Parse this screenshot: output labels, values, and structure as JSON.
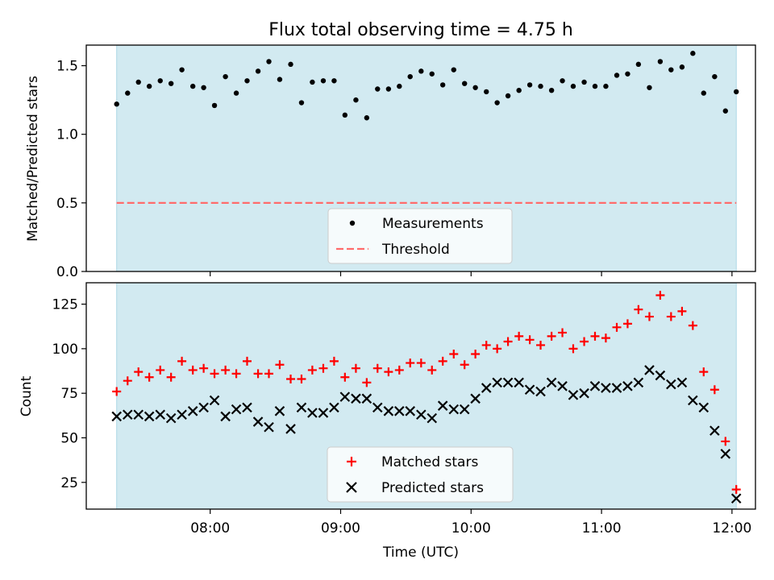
{
  "figure_title": "Flux total observing time = 4.75 h",
  "x_tick_labels": [
    "08:00",
    "09:00",
    "10:00",
    "11:00",
    "12:00"
  ],
  "chart_data": [
    {
      "type": "scatter",
      "title": "Flux total observing time = 4.75 h",
      "ylabel": "Matched/Predicted stars",
      "xlabel": "",
      "xlim": [
        7.05,
        12.18
      ],
      "ylim": [
        0,
        1.65
      ],
      "yticks": [
        0,
        0.5,
        1.0,
        1.5
      ],
      "ytick_labels": [
        "0.0",
        "0.5",
        "1.0",
        "1.5"
      ],
      "shaded_span": [
        7.283,
        12.033
      ],
      "shade_color": "#add8e6",
      "legend": {
        "location": "bottom-center",
        "entries": [
          "Measurements",
          "Threshold"
        ]
      },
      "threshold": {
        "name": "Threshold",
        "value": 0.5,
        "color": "#ff6b6b",
        "style": "dashed"
      },
      "series": [
        {
          "name": "Measurements",
          "marker": "dot",
          "color": "#000000",
          "x": [
            7.283,
            7.367,
            7.45,
            7.533,
            7.617,
            7.7,
            7.783,
            7.867,
            7.95,
            8.033,
            8.117,
            8.2,
            8.283,
            8.367,
            8.45,
            8.533,
            8.617,
            8.7,
            8.783,
            8.867,
            8.95,
            9.033,
            9.117,
            9.2,
            9.283,
            9.367,
            9.45,
            9.533,
            9.617,
            9.7,
            9.783,
            9.867,
            9.95,
            10.033,
            10.117,
            10.2,
            10.283,
            10.367,
            10.45,
            10.533,
            10.617,
            10.7,
            10.783,
            10.867,
            10.95,
            11.033,
            11.117,
            11.2,
            11.283,
            11.367,
            11.45,
            11.533,
            11.617,
            11.7,
            11.783,
            11.867,
            11.95,
            12.033
          ],
          "y": [
            1.22,
            1.3,
            1.38,
            1.35,
            1.39,
            1.37,
            1.47,
            1.35,
            1.34,
            1.21,
            1.42,
            1.3,
            1.39,
            1.46,
            1.53,
            1.4,
            1.51,
            1.23,
            1.38,
            1.39,
            1.39,
            1.14,
            1.25,
            1.12,
            1.33,
            1.33,
            1.35,
            1.42,
            1.46,
            1.44,
            1.36,
            1.47,
            1.37,
            1.34,
            1.31,
            1.23,
            1.28,
            1.32,
            1.36,
            1.35,
            1.32,
            1.39,
            1.35,
            1.38,
            1.35,
            1.35,
            1.43,
            1.44,
            1.51,
            1.34,
            1.53,
            1.47,
            1.49,
            1.59,
            1.3,
            1.42,
            1.17,
            1.31
          ]
        }
      ]
    },
    {
      "type": "scatter",
      "title": "",
      "ylabel": "Count",
      "xlabel": "Time (UTC)",
      "xlim": [
        7.05,
        12.18
      ],
      "ylim": [
        10,
        137
      ],
      "yticks": [
        25,
        50,
        75,
        100,
        125
      ],
      "ytick_labels": [
        "25",
        "50",
        "75",
        "100",
        "125"
      ],
      "shaded_span": [
        7.283,
        12.033
      ],
      "shade_color": "#add8e6",
      "legend": {
        "location": "bottom-center",
        "entries": [
          "Matched stars",
          "Predicted stars"
        ]
      },
      "series": [
        {
          "name": "Matched stars",
          "marker": "plus",
          "color": "#ff0000",
          "x": [
            7.283,
            7.367,
            7.45,
            7.533,
            7.617,
            7.7,
            7.783,
            7.867,
            7.95,
            8.033,
            8.117,
            8.2,
            8.283,
            8.367,
            8.45,
            8.533,
            8.617,
            8.7,
            8.783,
            8.867,
            8.95,
            9.033,
            9.117,
            9.2,
            9.283,
            9.367,
            9.45,
            9.533,
            9.617,
            9.7,
            9.783,
            9.867,
            9.95,
            10.033,
            10.117,
            10.2,
            10.283,
            10.367,
            10.45,
            10.533,
            10.617,
            10.7,
            10.783,
            10.867,
            10.95,
            11.033,
            11.117,
            11.2,
            11.283,
            11.367,
            11.45,
            11.533,
            11.617,
            11.7,
            11.783,
            11.867,
            11.95,
            12.033
          ],
          "y": [
            76,
            82,
            87,
            84,
            88,
            84,
            93,
            88,
            89,
            86,
            88,
            86,
            93,
            86,
            86,
            91,
            83,
            83,
            88,
            89,
            93,
            84,
            89,
            81,
            89,
            87,
            88,
            92,
            92,
            88,
            93,
            97,
            91,
            97,
            102,
            100,
            104,
            107,
            105,
            102,
            107,
            109,
            100,
            104,
            107,
            106,
            112,
            114,
            122,
            118,
            130,
            118,
            121,
            113,
            87,
            77,
            48,
            21
          ]
        },
        {
          "name": "Predicted stars",
          "marker": "x",
          "color": "#000000",
          "x": [
            7.283,
            7.367,
            7.45,
            7.533,
            7.617,
            7.7,
            7.783,
            7.867,
            7.95,
            8.033,
            8.117,
            8.2,
            8.283,
            8.367,
            8.45,
            8.533,
            8.617,
            8.7,
            8.783,
            8.867,
            8.95,
            9.033,
            9.117,
            9.2,
            9.283,
            9.367,
            9.45,
            9.533,
            9.617,
            9.7,
            9.783,
            9.867,
            9.95,
            10.033,
            10.117,
            10.2,
            10.283,
            10.367,
            10.45,
            10.533,
            10.617,
            10.7,
            10.783,
            10.867,
            10.95,
            11.033,
            11.117,
            11.2,
            11.283,
            11.367,
            11.45,
            11.533,
            11.617,
            11.7,
            11.783,
            11.867,
            11.95,
            12.033
          ],
          "y": [
            62,
            63,
            63,
            62,
            63,
            61,
            63,
            65,
            67,
            71,
            62,
            66,
            67,
            59,
            56,
            65,
            55,
            67,
            64,
            64,
            67,
            73,
            72,
            72,
            67,
            65,
            65,
            65,
            63,
            61,
            68,
            66,
            66,
            72,
            78,
            81,
            81,
            81,
            77,
            76,
            81,
            79,
            74,
            75,
            79,
            78,
            78,
            79,
            81,
            88,
            85,
            80,
            81,
            71,
            67,
            54,
            41,
            16
          ]
        }
      ]
    }
  ]
}
